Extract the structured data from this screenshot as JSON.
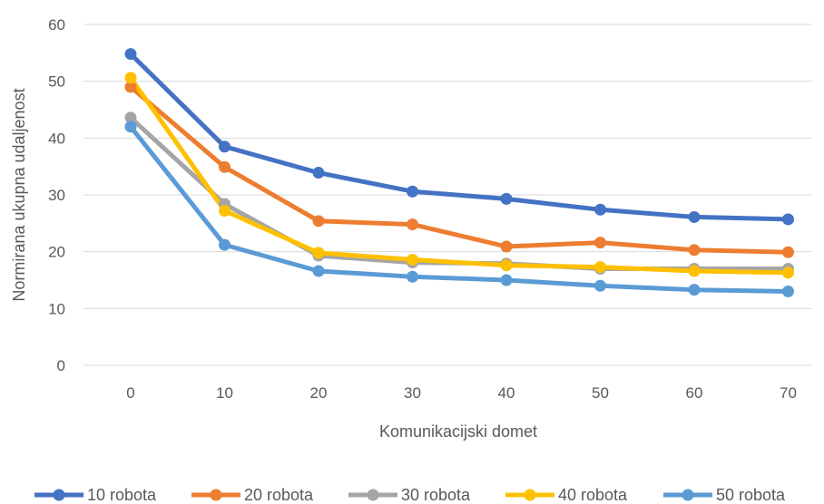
{
  "chart_data": {
    "type": "line",
    "x": [
      0,
      10,
      20,
      30,
      40,
      50,
      60,
      70
    ],
    "xlabel": "Komunikacijski domet",
    "ylabel": "Normirana ukupna udaljenost",
    "ylim": [
      0,
      60
    ],
    "yticks": [
      0,
      10,
      20,
      30,
      40,
      50,
      60
    ],
    "grid": "horizontal",
    "legend": "bottom",
    "series": [
      {
        "name": "10 robota",
        "color": "#4472C4",
        "values": [
          54.8,
          38.5,
          33.9,
          30.6,
          29.3,
          27.4,
          26.1,
          25.7
        ]
      },
      {
        "name": "20 robota",
        "color": "#ED7D31",
        "values": [
          49.0,
          34.9,
          25.4,
          24.8,
          20.9,
          21.6,
          20.3,
          19.9
        ]
      },
      {
        "name": "30 robota",
        "color": "#A5A5A5",
        "values": [
          43.6,
          28.4,
          19.3,
          18.1,
          17.9,
          17.0,
          17.0,
          17.0
        ]
      },
      {
        "name": "40 robota",
        "color": "#FFC000",
        "values": [
          50.6,
          27.2,
          19.8,
          18.6,
          17.6,
          17.3,
          16.6,
          16.3
        ]
      },
      {
        "name": "50 robota",
        "color": "#5B9BD5",
        "values": [
          42.0,
          21.2,
          16.6,
          15.6,
          15.0,
          14.0,
          13.3,
          13.0
        ]
      }
    ]
  }
}
